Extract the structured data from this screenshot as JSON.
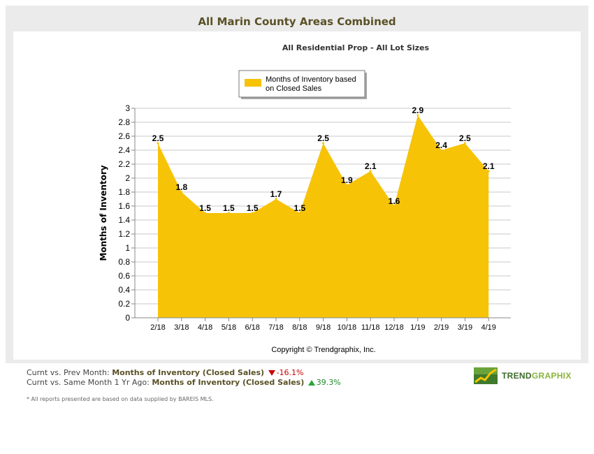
{
  "header": {
    "title": "All Marin County Areas Combined",
    "subtitle": "All Residential Prop - All Lot Sizes"
  },
  "chart_data": {
    "type": "area",
    "title": "All Marin County Areas Combined",
    "subtitle": "All Residential Prop - All Lot Sizes",
    "xlabel": "",
    "ylabel": "Months of Inventory",
    "ylim": [
      0,
      3
    ],
    "yticks": [
      "0",
      "0.2",
      "0.4",
      "0.6",
      "0.8",
      "1",
      "1.2",
      "1.4",
      "1.6",
      "1.8",
      "2",
      "2.2",
      "2.4",
      "2.6",
      "2.8",
      "3"
    ],
    "grid": true,
    "legend_position": "top-center",
    "categories": [
      "2/18",
      "3/18",
      "4/18",
      "5/18",
      "6/18",
      "7/18",
      "8/18",
      "9/18",
      "10/18",
      "11/18",
      "12/18",
      "1/19",
      "2/19",
      "3/19",
      "4/19"
    ],
    "series": [
      {
        "name": "Months of Inventory based on Closed Sales",
        "legend_lines": [
          "Months of Inventory based",
          "on Closed Sales"
        ],
        "values": [
          2.5,
          1.8,
          1.5,
          1.5,
          1.5,
          1.7,
          1.5,
          2.5,
          1.9,
          2.1,
          1.6,
          2.9,
          2.4,
          2.5,
          2.1
        ],
        "labels": [
          "2.5",
          "1.8",
          "1.5",
          "1.5",
          "1.5",
          "1.7",
          "1.5",
          "2.5",
          "1.9",
          "2.1",
          "1.6",
          "2.9",
          "2.4",
          "2.5",
          "2.1"
        ],
        "color": "#f7c307"
      }
    ],
    "copyright": "Copyright © Trendgraphix, Inc."
  },
  "footer": {
    "prev_month": {
      "label": "Curnt vs. Prev Month:",
      "metric": "Months of Inventory (Closed Sales)",
      "change": "-16.1%"
    },
    "year_ago": {
      "label": "Curnt vs. Same Month 1 Yr Ago:",
      "metric": "Months of Inventory (Closed Sales)",
      "change": "39.3%"
    },
    "note": "* All reports presented are based on data supplied by BAREIS MLS."
  },
  "logo": {
    "text_main": "TREND",
    "text_tail": "GRAPHIX"
  },
  "colors": {
    "title": "#5a5126",
    "area": "#f7c307",
    "down": "#cc0000",
    "up": "#1f8a2a"
  }
}
